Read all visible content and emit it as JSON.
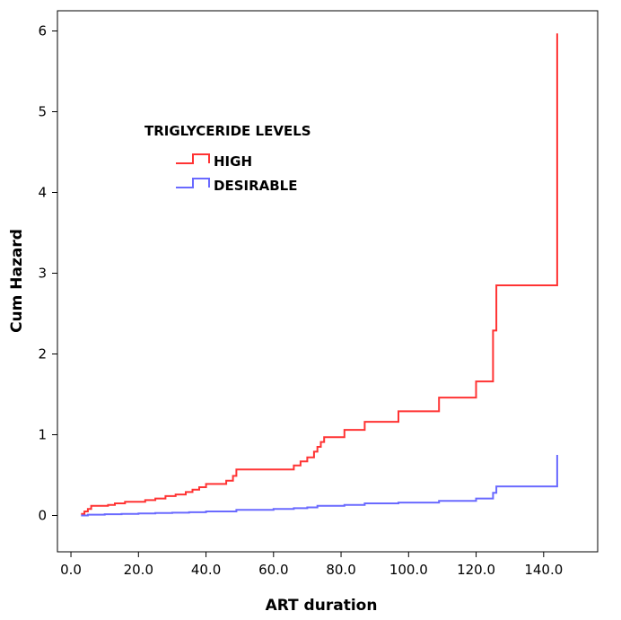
{
  "chart_data": {
    "type": "line",
    "step": true,
    "xlabel": "ART duration",
    "ylabel": "Cum Hazard",
    "xlim": [
      -4,
      156
    ],
    "ylim": [
      -0.45,
      6.25
    ],
    "x_ticks": [
      0,
      20,
      40,
      60,
      80,
      100,
      120,
      140
    ],
    "x_tick_labels": [
      "0.0",
      "20.0",
      "40.0",
      "60.0",
      "80.0",
      "100.0",
      "120.0",
      "140.0"
    ],
    "y_ticks": [
      0,
      1,
      2,
      3,
      4,
      5,
      6
    ],
    "y_tick_labels": [
      "0",
      "1",
      "2",
      "3",
      "4",
      "5",
      "6"
    ],
    "legend": {
      "title": "TRIGLYCERIDE LEVELS",
      "position": "upper-left"
    },
    "series": [
      {
        "name": "HIGH",
        "color": "#ff3333",
        "points": [
          [
            3,
            0.02
          ],
          [
            4,
            0.05
          ],
          [
            5,
            0.08
          ],
          [
            6,
            0.12
          ],
          [
            11,
            0.13
          ],
          [
            13,
            0.15
          ],
          [
            16,
            0.17
          ],
          [
            22,
            0.19
          ],
          [
            25,
            0.21
          ],
          [
            28,
            0.24
          ],
          [
            31,
            0.26
          ],
          [
            34,
            0.29
          ],
          [
            36,
            0.32
          ],
          [
            38,
            0.35
          ],
          [
            40,
            0.39
          ],
          [
            46,
            0.43
          ],
          [
            48,
            0.49
          ],
          [
            49,
            0.57
          ],
          [
            66,
            0.62
          ],
          [
            68,
            0.67
          ],
          [
            70,
            0.72
          ],
          [
            72,
            0.79
          ],
          [
            73,
            0.85
          ],
          [
            74,
            0.91
          ],
          [
            75,
            0.97
          ],
          [
            81,
            1.06
          ],
          [
            87,
            1.16
          ],
          [
            97,
            1.29
          ],
          [
            109,
            1.46
          ],
          [
            120,
            1.66
          ],
          [
            125,
            2.29
          ],
          [
            126,
            2.85
          ],
          [
            144,
            5.97
          ]
        ],
        "end_x": 144
      },
      {
        "name": "DESIRABLE",
        "color": "#6a6aff",
        "points": [
          [
            3,
            0.0
          ],
          [
            5,
            0.01
          ],
          [
            10,
            0.015
          ],
          [
            15,
            0.02
          ],
          [
            20,
            0.025
          ],
          [
            25,
            0.03
          ],
          [
            30,
            0.035
          ],
          [
            35,
            0.04
          ],
          [
            40,
            0.05
          ],
          [
            49,
            0.07
          ],
          [
            60,
            0.08
          ],
          [
            66,
            0.09
          ],
          [
            70,
            0.1
          ],
          [
            73,
            0.12
          ],
          [
            81,
            0.13
          ],
          [
            87,
            0.15
          ],
          [
            97,
            0.16
          ],
          [
            109,
            0.18
          ],
          [
            120,
            0.21
          ],
          [
            125,
            0.28
          ],
          [
            126,
            0.36
          ],
          [
            144,
            0.75
          ]
        ],
        "end_x": 144
      }
    ]
  }
}
